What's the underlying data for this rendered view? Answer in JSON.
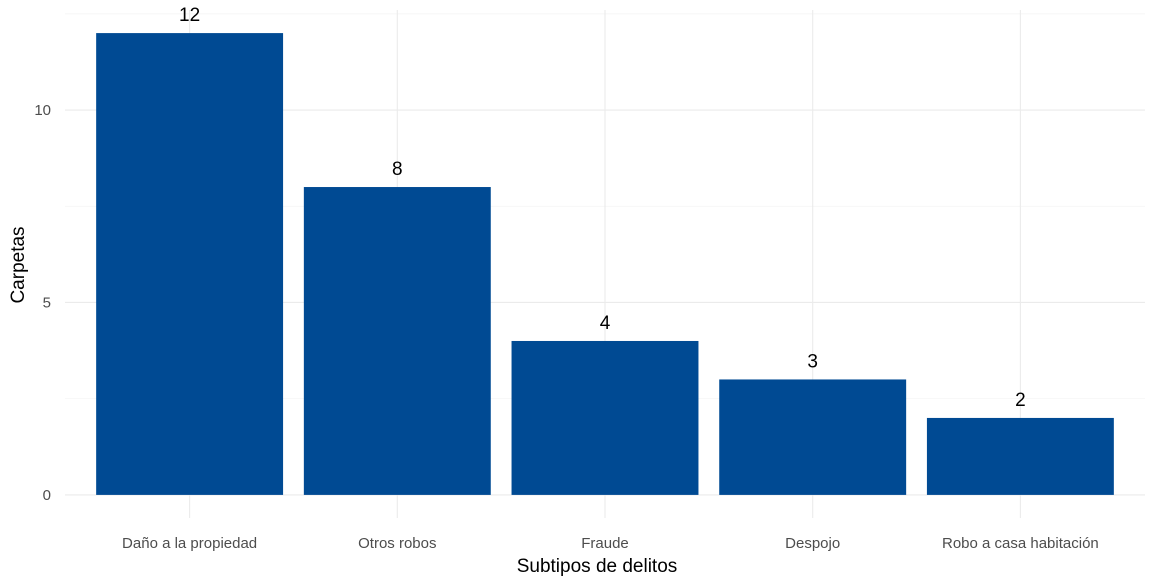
{
  "chart_data": {
    "type": "bar",
    "categories": [
      "Daño a la propiedad",
      "Otros robos",
      "Fraude",
      "Despojo",
      "Robo a casa habitación"
    ],
    "values": [
      12,
      8,
      4,
      3,
      2
    ],
    "data_labels": [
      "12",
      "8",
      "4",
      "3",
      "2"
    ],
    "xlabel": "Subtipos de delitos",
    "ylabel": "Carpetas",
    "ylim": [
      -0.6,
      12.6
    ],
    "yticks": [
      0,
      5,
      10
    ],
    "ytick_labels": [
      "0",
      "5",
      "10"
    ],
    "bar_color": "#004a93",
    "grid": true,
    "legend": "none"
  }
}
